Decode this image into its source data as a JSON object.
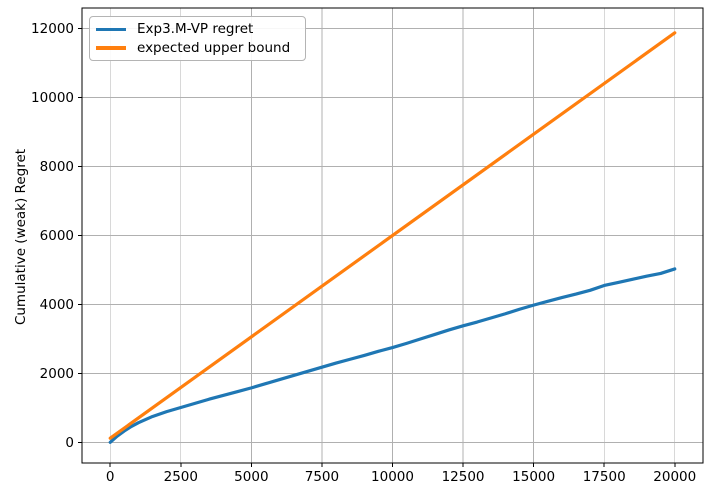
{
  "chart_data": {
    "type": "line",
    "title": "",
    "xlabel": "",
    "ylabel": "Cumulative (weak) Regret",
    "xlim": [
      -1000,
      21000
    ],
    "ylim": [
      -600,
      12600
    ],
    "xticks": [
      0,
      2500,
      5000,
      7500,
      10000,
      12500,
      15000,
      17500,
      20000
    ],
    "yticks": [
      0,
      2000,
      4000,
      6000,
      8000,
      10000,
      12000
    ],
    "grid": true,
    "grid_color": "#b0b0b0",
    "spine_color": "#000000",
    "legend_position": "upper left",
    "series": [
      {
        "name": "Exp3.M-VP regret",
        "color": "#1f77b4",
        "line_width": 3.2,
        "x": [
          0,
          250,
          500,
          750,
          1000,
          1500,
          2000,
          2500,
          3000,
          3500,
          4000,
          4500,
          5000,
          5500,
          6000,
          6500,
          7000,
          7500,
          8000,
          8500,
          9000,
          9500,
          10000,
          10500,
          11000,
          11500,
          12000,
          12500,
          13000,
          13500,
          14000,
          14500,
          15000,
          15500,
          16000,
          16500,
          17000,
          17500,
          18000,
          18500,
          19000,
          19500,
          20000
        ],
        "y": [
          0,
          180,
          330,
          460,
          570,
          750,
          890,
          1010,
          1130,
          1250,
          1360,
          1470,
          1580,
          1700,
          1820,
          1940,
          2060,
          2180,
          2300,
          2410,
          2520,
          2640,
          2750,
          2870,
          3000,
          3130,
          3260,
          3380,
          3490,
          3610,
          3730,
          3860,
          3980,
          4090,
          4200,
          4300,
          4410,
          4550,
          4640,
          4730,
          4820,
          4900,
          5030
        ]
      },
      {
        "name": "expected upper bound",
        "color": "#ff7f0e",
        "line_width": 3.2,
        "x": [
          0,
          20000
        ],
        "y": [
          120,
          11880
        ]
      }
    ]
  }
}
